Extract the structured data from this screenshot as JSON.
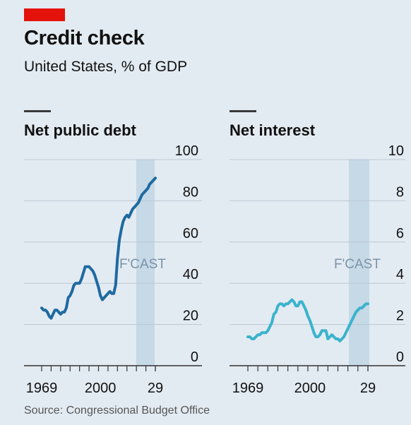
{
  "header": {
    "title": "Credit check",
    "subtitle": "United States, % of GDP"
  },
  "source": "Source: Congressional Budget Office",
  "colors": {
    "debt_line": "#1f6aa0",
    "interest_line": "#3bb3cc",
    "forecast_band": "#c6d9e6",
    "accent_red": "#e3120b"
  },
  "chart_data": [
    {
      "type": "line",
      "title": "Net public debt",
      "forecast_label": "F'CAST",
      "forecast_range": [
        2019,
        2029
      ],
      "ylim": [
        0,
        100
      ],
      "yticks": [
        0,
        20,
        40,
        60,
        80,
        100
      ],
      "xlim": [
        1969,
        2029
      ],
      "xticklabels": [
        "1969",
        "2000",
        "29"
      ],
      "grid": true,
      "series": [
        {
          "x": [
            1969,
            1970,
            1971,
            1972,
            1973,
            1974,
            1975,
            1976,
            1977,
            1978,
            1979,
            1980,
            1981,
            1982,
            1983,
            1984,
            1985,
            1986,
            1987,
            1988,
            1989,
            1990,
            1991,
            1992,
            1993,
            1994,
            1995,
            1996,
            1997,
            1998,
            1999,
            2000,
            2001,
            2002,
            2003,
            2004,
            2005,
            2006,
            2007,
            2008,
            2009,
            2010,
            2011,
            2012,
            2013,
            2014,
            2015,
            2016,
            2017,
            2018,
            2019,
            2020,
            2021,
            2022,
            2023,
            2024,
            2025,
            2026,
            2027,
            2028,
            2029
          ],
          "y": [
            28,
            27,
            27,
            26,
            24,
            23,
            25,
            27,
            27,
            26,
            25,
            26,
            26,
            28,
            33,
            34,
            36,
            39,
            40,
            40,
            40,
            42,
            45,
            48,
            48,
            48,
            47,
            46,
            44,
            41,
            38,
            34,
            32,
            33,
            34,
            35,
            36,
            35,
            35,
            39,
            52,
            61,
            66,
            70,
            72,
            73,
            72,
            74,
            76,
            77,
            78,
            79,
            81,
            83,
            84,
            85,
            86,
            88,
            89,
            90,
            91
          ]
        }
      ]
    },
    {
      "type": "line",
      "title": "Net interest",
      "forecast_label": "F'CAST",
      "forecast_range": [
        2019,
        2029
      ],
      "ylim": [
        0,
        10
      ],
      "yticks": [
        0,
        2,
        4,
        6,
        8,
        10
      ],
      "xlim": [
        1969,
        2029
      ],
      "xticklabels": [
        "1969",
        "2000",
        "29"
      ],
      "grid": true,
      "series": [
        {
          "x": [
            1969,
            1970,
            1971,
            1972,
            1973,
            1974,
            1975,
            1976,
            1977,
            1978,
            1979,
            1980,
            1981,
            1982,
            1983,
            1984,
            1985,
            1986,
            1987,
            1988,
            1989,
            1990,
            1991,
            1992,
            1993,
            1994,
            1995,
            1996,
            1997,
            1998,
            1999,
            2000,
            2001,
            2002,
            2003,
            2004,
            2005,
            2006,
            2007,
            2008,
            2009,
            2010,
            2011,
            2012,
            2013,
            2014,
            2015,
            2016,
            2017,
            2018,
            2019,
            2020,
            2021,
            2022,
            2023,
            2024,
            2025,
            2026,
            2027,
            2028,
            2029
          ],
          "y": [
            1.4,
            1.4,
            1.3,
            1.3,
            1.4,
            1.5,
            1.5,
            1.6,
            1.6,
            1.6,
            1.7,
            1.9,
            2.1,
            2.5,
            2.6,
            2.9,
            3.0,
            3.0,
            2.9,
            3.0,
            3.0,
            3.1,
            3.2,
            3.1,
            2.9,
            2.9,
            3.1,
            3.1,
            2.9,
            2.7,
            2.4,
            2.2,
            1.9,
            1.6,
            1.4,
            1.4,
            1.5,
            1.7,
            1.7,
            1.7,
            1.3,
            1.4,
            1.5,
            1.4,
            1.3,
            1.3,
            1.2,
            1.3,
            1.4,
            1.6,
            1.8,
            2.0,
            2.2,
            2.4,
            2.6,
            2.7,
            2.8,
            2.8,
            2.9,
            3.0,
            3.0
          ]
        }
      ]
    }
  ]
}
